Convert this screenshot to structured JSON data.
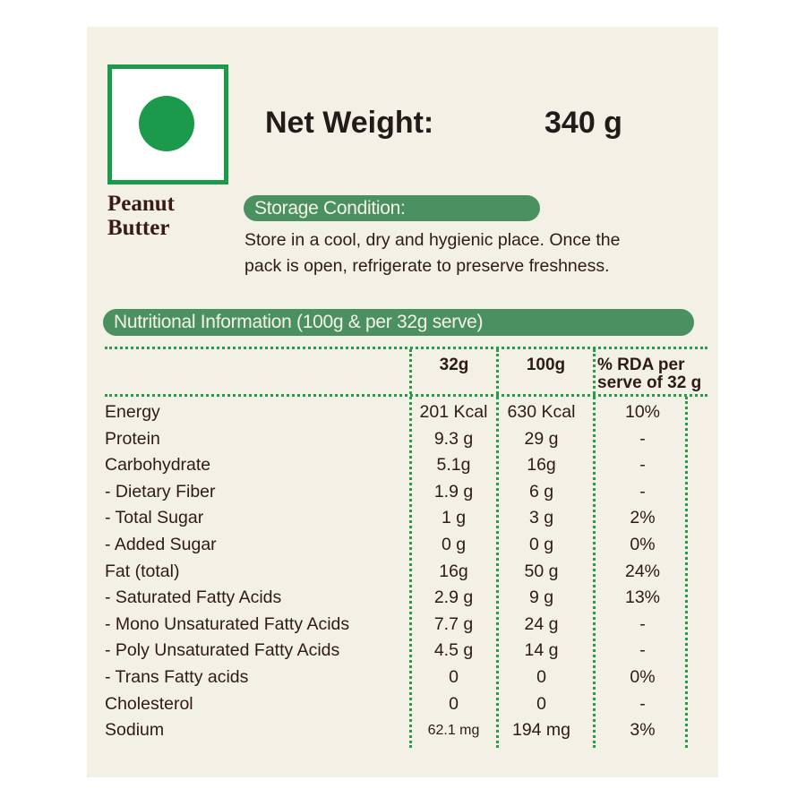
{
  "logo": {
    "icon": "veg-mark-icon",
    "color": "#1a9a4a"
  },
  "product_name": [
    "Peanut",
    "Butter"
  ],
  "net_weight": {
    "label": "Net Weight:",
    "value": "340 g"
  },
  "storage": {
    "heading": "Storage Condition:",
    "lines": [
      "Store in a cool, dry and hygienic place. Once the",
      "pack is open, refrigerate to preserve freshness."
    ]
  },
  "nutrition": {
    "heading": "Nutritional Information (100g & per 32g serve)",
    "columns": [
      "32g",
      "100g",
      "% RDA per",
      "serve of 32 g"
    ],
    "rows": [
      [
        "Energy",
        "201 Kcal",
        "630 Kcal",
        "10%"
      ],
      [
        "Protein",
        "9.3 g",
        "29 g",
        "-"
      ],
      [
        "Carbohydrate",
        "5.1g",
        "16g",
        "-"
      ],
      [
        "- Dietary Fiber",
        "1.9 g",
        "6 g",
        "-"
      ],
      [
        "- Total Sugar",
        "1 g",
        "3 g",
        "2%"
      ],
      [
        "- Added Sugar",
        "0 g",
        "0 g",
        "0%"
      ],
      [
        "Fat (total)",
        "16g",
        "50 g",
        "24%"
      ],
      [
        "- Saturated Fatty Acids",
        "2.9 g",
        "9 g",
        "13%"
      ],
      [
        "- Mono Unsaturated Fatty Acids",
        "7.7 g",
        "24 g",
        "-"
      ],
      [
        "- Poly Unsaturated Fatty Acids",
        "4.5 g",
        "14 g",
        "-"
      ],
      [
        "- Trans Fatty acids",
        "0",
        "0",
        "0%"
      ],
      [
        "Cholesterol",
        "0",
        "0",
        "-"
      ],
      [
        "Sodium",
        "62.1 mg",
        "194 mg",
        "3%"
      ]
    ]
  },
  "colors": {
    "green_band": "#4a9060",
    "text": "#2e1a16",
    "background": "#f3f1e5"
  }
}
